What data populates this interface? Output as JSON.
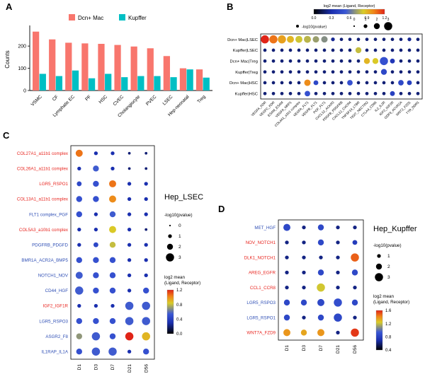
{
  "figure": {
    "panel_labels": {
      "A": "A",
      "B": "B",
      "C": "C",
      "D": "D"
    }
  },
  "style": {
    "red_label": "#e8251f",
    "blue_label": "#2f4fb5",
    "bar_color_1": "#F8766D",
    "bar_color_2": "#00BFC4",
    "colormap": [
      [
        0,
        "#000000"
      ],
      [
        0.25,
        "#1a2faf"
      ],
      [
        0.45,
        "#3a57d5"
      ],
      [
        0.7,
        "#d9cd28"
      ],
      [
        0.85,
        "#f08418"
      ],
      [
        1,
        "#e02417"
      ]
    ]
  },
  "chart_data": [
    {
      "id": "A",
      "type": "bar",
      "ylabel": "Counts",
      "ylim": [
        0,
        280
      ],
      "yticks": [
        0,
        100,
        200
      ],
      "legend_position": "top",
      "categories": [
        "VSMC",
        "CF",
        "Lymphatic EC",
        "PF",
        "HSC",
        "CVEC",
        "Cholangiocyte",
        "PVEC",
        "LSEC",
        "Hep-neonatal",
        "Treg"
      ],
      "series": [
        {
          "name": "Dcn+ Mac",
          "color": "#F8766D",
          "values": [
            265,
            230,
            215,
            212,
            210,
            205,
            198,
            190,
            155,
            100,
            95
          ]
        },
        {
          "name": "Kupffer",
          "color": "#00BFC4",
          "values": [
            75,
            65,
            90,
            55,
            75,
            60,
            65,
            65,
            60,
            95,
            58
          ]
        }
      ]
    },
    {
      "id": "B",
      "type": "dotplot",
      "color_legend_title": "log2 mean (Ligand, Receptor)",
      "size_legend_title": "-log10(pvalue)",
      "size_ticks": [
        0,
        1,
        2,
        3
      ],
      "color_ticks": [
        0.0,
        0.3,
        0.6,
        0.9,
        1.2
      ],
      "color_max": 1.2,
      "rows": [
        {
          "label": "Dcn+ Mac|LSEC",
          "color": "#000000"
        },
        {
          "label": "Kupffer|LSEC",
          "color": "#000000"
        },
        {
          "label": "Dcn+ Mac|Treg",
          "color": "#000000"
        },
        {
          "label": "Kupffer|Treg",
          "color": "#000000"
        },
        {
          "label": "Dcn+ Mac|HSC",
          "color": "#000000"
        },
        {
          "label": "Kupffer|HSC",
          "color": "#000000"
        }
      ],
      "columns": [
        "VEGFA_KDR",
        "VEGFC_KDR",
        "ESAM_ESAM",
        "VEGFA_NRP1",
        "COL4A1_a1b1 complex",
        "VEGFA_FLT1",
        "VEGFB_FLT1",
        "PGF_FLT1",
        "CXCL12_ACKR3",
        "PDGFB_PDGFRB",
        "CXCL12_CXCR4",
        "TNFSF14_LTBR",
        "TIGIT_NECTIN2",
        "CTLA4_CD86",
        "IL2_IL2R",
        "IGF2_IGF2R",
        "GDF9_ACVR2A",
        "WNT2_FZD1",
        "TTR_DDR1"
      ],
      "sizes": [
        [
          3,
          3,
          3,
          2.5,
          2.5,
          2.5,
          2.2,
          2.2,
          1,
          0.8,
          0.8,
          0.8,
          0.8,
          0.8,
          0.8,
          0.8,
          0.8,
          1,
          0.8
        ],
        [
          0.8,
          0.8,
          0.8,
          0.8,
          0.8,
          0.8,
          0.8,
          0.8,
          0.8,
          0.8,
          0.8,
          2,
          0.8,
          0.8,
          0.8,
          0.8,
          0.8,
          0.8,
          0.8
        ],
        [
          0.8,
          0.8,
          0.8,
          0.8,
          0.8,
          0.8,
          0.8,
          0.8,
          0.8,
          0.8,
          0.8,
          0.8,
          2,
          2,
          3,
          1.5,
          0.8,
          0.8,
          0.8
        ],
        [
          0.8,
          0.8,
          0.8,
          0.8,
          0.8,
          0.8,
          0.8,
          0.8,
          0.8,
          0.8,
          0.8,
          0.8,
          0.8,
          0.8,
          2,
          0.8,
          0.8,
          0.8,
          0.8
        ],
        [
          0.8,
          0.8,
          0.8,
          0.8,
          0.8,
          2.2,
          1.5,
          0.8,
          0.8,
          0.8,
          1.8,
          0.8,
          0.8,
          0.8,
          0.8,
          0.8,
          1.8,
          1.5,
          0.8
        ],
        [
          0.8,
          0.8,
          0.8,
          0.8,
          0.8,
          1.8,
          0.8,
          0.8,
          0.8,
          0.8,
          0.8,
          0.8,
          0.8,
          0.8,
          0.8,
          1.5,
          0.8,
          0.8,
          0.8
        ]
      ],
      "values": [
        [
          1.2,
          1.05,
          0.95,
          0.9,
          0.82,
          0.78,
          0.72,
          0.68,
          0.25,
          0.2,
          0.2,
          0.2,
          0.2,
          0.2,
          0.2,
          0.2,
          0.2,
          0.25,
          0.2
        ],
        [
          0.2,
          0.2,
          0.2,
          0.2,
          0.2,
          0.2,
          0.2,
          0.2,
          0.2,
          0.2,
          0.2,
          0.8,
          0.2,
          0.2,
          0.2,
          0.2,
          0.2,
          0.2,
          0.2
        ],
        [
          0.2,
          0.2,
          0.2,
          0.2,
          0.2,
          0.2,
          0.2,
          0.2,
          0.2,
          0.2,
          0.2,
          0.2,
          0.9,
          0.85,
          0.5,
          0.35,
          0.2,
          0.2,
          0.2
        ],
        [
          0.2,
          0.2,
          0.2,
          0.2,
          0.2,
          0.2,
          0.2,
          0.2,
          0.2,
          0.2,
          0.2,
          0.2,
          0.2,
          0.2,
          0.45,
          0.2,
          0.2,
          0.2,
          0.2
        ],
        [
          0.2,
          0.2,
          0.2,
          0.2,
          0.2,
          1.0,
          0.45,
          0.2,
          0.2,
          0.2,
          0.5,
          0.2,
          0.2,
          0.2,
          0.2,
          0.2,
          0.45,
          0.4,
          0.2
        ],
        [
          0.2,
          0.2,
          0.2,
          0.2,
          0.2,
          0.5,
          0.2,
          0.2,
          0.2,
          0.2,
          0.2,
          0.2,
          0.2,
          0.2,
          0.2,
          0.4,
          0.2,
          0.2,
          0.2
        ]
      ]
    },
    {
      "id": "C",
      "type": "dotplot",
      "title": "Hep_LSEC",
      "size_legend_title": "-log10(pvalue)",
      "size_ticks": [
        0,
        1,
        2,
        3
      ],
      "color_legend_title_lines": [
        "log2 mean",
        "(Ligand, Receptor)"
      ],
      "color_ticks": [
        1.2,
        0.8,
        0.4,
        0.0
      ],
      "color_max": 1.2,
      "rows": [
        {
          "label": "COL27A1_a11b1 complex",
          "color": "#e8251f"
        },
        {
          "label": "COL26A1_a11b1 complex",
          "color": "#e8251f"
        },
        {
          "label": "LGR5_RSPO1",
          "color": "#e8251f"
        },
        {
          "label": "COL13A1_a11b1 complex",
          "color": "#e8251f"
        },
        {
          "label": "FLT1 complex_PGF",
          "color": "#2f4fb5"
        },
        {
          "label": "COL5A3_a10b1 complex",
          "color": "#e8251f"
        },
        {
          "label": "PDGFRB_PDGFD",
          "color": "#2f4fb5"
        },
        {
          "label": "BMR1A_ACR2A_BMP5",
          "color": "#2f4fb5"
        },
        {
          "label": "NOTCH1_NOV",
          "color": "#2f4fb5"
        },
        {
          "label": "CD44_HGF",
          "color": "#2f4fb5"
        },
        {
          "label": "IGF2_IGF1R",
          "color": "#e8251f"
        },
        {
          "label": "LGR5_RSPO3",
          "color": "#2f4fb5"
        },
        {
          "label": "ASGR2_F8",
          "color": "#2f4fb5"
        },
        {
          "label": "IL1RAP_IL1A",
          "color": "#2f4fb5"
        }
      ],
      "columns": [
        "D1",
        "D3",
        "D7",
        "D21",
        "D56"
      ],
      "sizes": [
        [
          2.5,
          1,
          1,
          0.5,
          0.5
        ],
        [
          1,
          2,
          1,
          0.5,
          0.5
        ],
        [
          1.5,
          2,
          2.5,
          1,
          1
        ],
        [
          2,
          2,
          2.5,
          1,
          1
        ],
        [
          2,
          1,
          2,
          1,
          1
        ],
        [
          1,
          1,
          2.5,
          1,
          0.5
        ],
        [
          1,
          1.5,
          2,
          1,
          1
        ],
        [
          2,
          2,
          2,
          1,
          1
        ],
        [
          2.5,
          2,
          2,
          1,
          1
        ],
        [
          3,
          2,
          2,
          1,
          2
        ],
        [
          1,
          1,
          1,
          3,
          3
        ],
        [
          2,
          2,
          2,
          3,
          3
        ],
        [
          2,
          3,
          2,
          3,
          3
        ],
        [
          2,
          3,
          3,
          1,
          2
        ]
      ],
      "values": [
        [
          1.05,
          0.3,
          0.3,
          0.2,
          0.2
        ],
        [
          0.3,
          0.55,
          0.3,
          0.2,
          0.2
        ],
        [
          0.45,
          0.5,
          1.05,
          0.3,
          0.3
        ],
        [
          0.5,
          0.5,
          1.0,
          0.3,
          0.3
        ],
        [
          0.5,
          0.3,
          0.55,
          0.3,
          0.3
        ],
        [
          0.3,
          0.3,
          0.85,
          0.3,
          0.2
        ],
        [
          0.3,
          0.45,
          0.8,
          0.3,
          0.3
        ],
        [
          0.5,
          0.5,
          0.5,
          0.3,
          0.3
        ],
        [
          0.55,
          0.5,
          0.5,
          0.3,
          0.3
        ],
        [
          0.55,
          0.5,
          0.5,
          0.3,
          0.5
        ],
        [
          0.3,
          0.3,
          0.3,
          0.55,
          0.55
        ],
        [
          0.5,
          0.5,
          0.5,
          0.55,
          0.55
        ],
        [
          0.7,
          0.55,
          0.5,
          1.2,
          0.9
        ],
        [
          0.5,
          0.55,
          0.55,
          0.3,
          0.5
        ]
      ]
    },
    {
      "id": "D",
      "type": "dotplot",
      "title": "Hep_Kupffer",
      "size_legend_title": "-log10(pvalue)",
      "size_ticks": [
        1,
        2,
        3
      ],
      "color_legend_title_lines": [
        "log2 mean",
        "(Ligand, Receptor)"
      ],
      "color_ticks": [
        1.6,
        1.2,
        0.8,
        0.4
      ],
      "color_max": 1.6,
      "rows": [
        {
          "label": "MET_HGF",
          "color": "#2f4fb5"
        },
        {
          "label": "NOV_NOTCH1",
          "color": "#e8251f"
        },
        {
          "label": "DLK1_NOTCH1",
          "color": "#e8251f"
        },
        {
          "label": "AREG_EGFR",
          "color": "#e8251f"
        },
        {
          "label": "CCL1_CCR8",
          "color": "#e8251f"
        },
        {
          "label": "LGR5_RSPO3",
          "color": "#2f4fb5"
        },
        {
          "label": "LGR5_RSPO1",
          "color": "#2f4fb5"
        },
        {
          "label": "WNT7A_FZD9",
          "color": "#e8251f"
        }
      ],
      "columns": [
        "D1",
        "D3",
        "D7",
        "D21",
        "D56"
      ],
      "sizes": [
        [
          2.5,
          1,
          2,
          1,
          1
        ],
        [
          1,
          1,
          2,
          1,
          1.5
        ],
        [
          1,
          1,
          1,
          1,
          3
        ],
        [
          1,
          1,
          2,
          1,
          2
        ],
        [
          1,
          1,
          3,
          1,
          1
        ],
        [
          2,
          2,
          2.5,
          3,
          2
        ],
        [
          2,
          1,
          2,
          3,
          1
        ],
        [
          2.5,
          2,
          2.5,
          1,
          3
        ]
      ],
      "values": [
        [
          0.6,
          0.3,
          0.6,
          0.3,
          0.3
        ],
        [
          0.3,
          0.3,
          0.6,
          0.3,
          0.5
        ],
        [
          0.3,
          0.3,
          0.3,
          0.3,
          1.45
        ],
        [
          0.3,
          0.3,
          0.6,
          0.3,
          0.6
        ],
        [
          0.3,
          0.3,
          1.1,
          0.3,
          0.3
        ],
        [
          0.6,
          0.6,
          0.6,
          0.65,
          0.6
        ],
        [
          0.6,
          0.3,
          0.6,
          0.6,
          0.3
        ],
        [
          1.3,
          1.25,
          1.3,
          0.3,
          1.55
        ]
      ]
    }
  ]
}
